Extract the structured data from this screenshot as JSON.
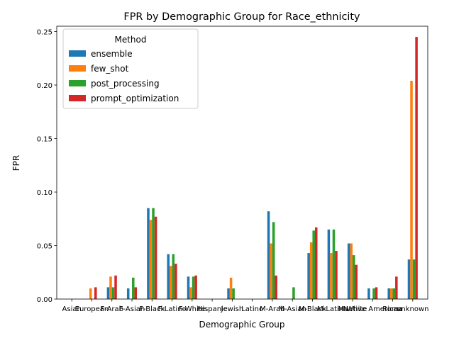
{
  "chart_data": {
    "type": "bar",
    "title": "FPR by Demographic Group for Race_ethnicity",
    "xlabel": "Demographic Group",
    "ylabel": "FPR",
    "ylim": [
      0,
      0.255
    ],
    "yticks": [
      0.0,
      0.05,
      0.1,
      0.15,
      0.2,
      0.25
    ],
    "ytick_labels": [
      "0.00",
      "0.05",
      "0.10",
      "0.15",
      "0.20",
      "0.25"
    ],
    "grid": false,
    "legend": {
      "title": "Method",
      "placement": "top-left"
    },
    "categories": [
      "Asian",
      "European",
      "F-Arab",
      "F-Asian",
      "F-Black",
      "F-Latino",
      "F-White",
      "Hispanic",
      "Jewish",
      "Latino",
      "M-Arab",
      "M-Asian",
      "M-Black",
      "M-Latino",
      "M-White",
      "Native American",
      "Roma",
      "unknown"
    ],
    "series": [
      {
        "name": "ensemble",
        "color": "#1f77b4",
        "values": [
          0,
          0,
          0.011,
          0.01,
          0.085,
          0.042,
          0.021,
          0,
          0.01,
          0,
          0.082,
          0,
          0.043,
          0.065,
          0.052,
          0.01,
          0.01,
          0.037
        ]
      },
      {
        "name": "few_shot",
        "color": "#ff7f0e",
        "values": [
          0,
          0.01,
          0.021,
          0,
          0.074,
          0.031,
          0.011,
          0,
          0.02,
          0,
          0.052,
          0,
          0.053,
          0.043,
          0.052,
          0,
          0.01,
          0.204
        ]
      },
      {
        "name": "post_processing",
        "color": "#2ca02c",
        "values": [
          0,
          0,
          0.011,
          0.02,
          0.085,
          0.042,
          0.021,
          0,
          0.01,
          0,
          0.072,
          0.011,
          0.064,
          0.065,
          0.041,
          0.01,
          0.01,
          0.037
        ]
      },
      {
        "name": "prompt_optimization",
        "color": "#d62728",
        "values": [
          0,
          0.011,
          0.022,
          0.011,
          0.077,
          0.033,
          0.022,
          0,
          0,
          0,
          0.022,
          0,
          0.067,
          0.045,
          0.032,
          0.011,
          0.021,
          0.245
        ]
      }
    ]
  }
}
